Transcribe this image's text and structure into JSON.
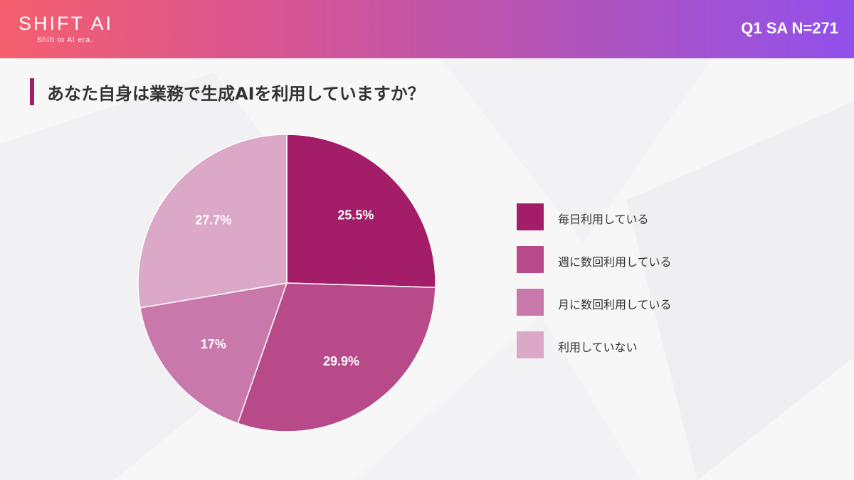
{
  "header": {
    "logo": "SHIFT AI",
    "tagline": "Shift to AI era.",
    "survey_meta": "Q1 SA N=271"
  },
  "question": {
    "title": "あなた自身は業務で生成AIを利用していますか？"
  },
  "colors": {
    "header_start": "#f5606f",
    "header_end": "#9150ea",
    "accent": "#a31f6a"
  },
  "chart_data": {
    "type": "pie",
    "start_angle_deg": 0,
    "direction": "clockwise",
    "slices": [
      {
        "label": "毎日利用している",
        "value": 25.5,
        "display": "25.5%",
        "color": "#a31d69"
      },
      {
        "label": "週に数回利用している",
        "value": 29.9,
        "display": "29.9%",
        "color": "#b84a8a"
      },
      {
        "label": "月に数回利用している",
        "value": 17,
        "display": "17%",
        "color": "#c978ab"
      },
      {
        "label": "利用していない",
        "value": 27.7,
        "display": "27.7%",
        "color": "#dba8c8"
      }
    ],
    "legend_position": "right"
  }
}
